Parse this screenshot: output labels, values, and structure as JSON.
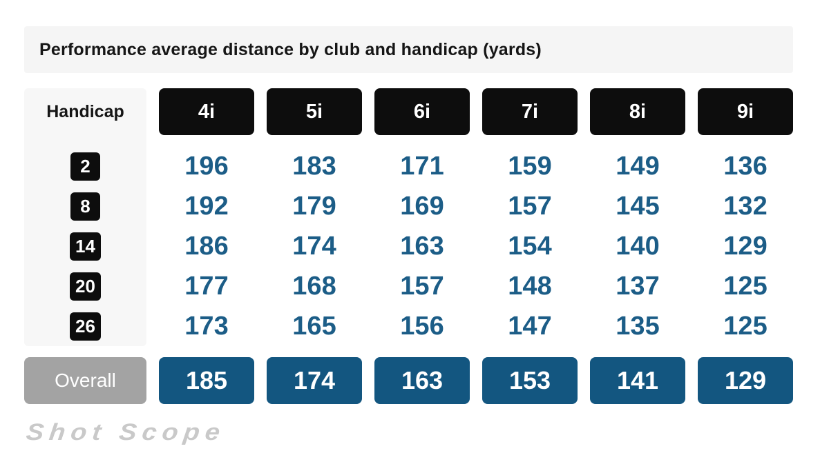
{
  "title": "Performance average distance by club and handicap (yards)",
  "watermark": "Shot Scope",
  "colors": {
    "page_bg": "#ffffff",
    "title_bar_bg": "#f5f5f5",
    "panel_bg": "#f7f7f7",
    "chip_black": "#0d0d0d",
    "value_blue": "#1c5d87",
    "overall_blue_bg": "#135680",
    "overall_gray_bg": "#a3a3a3",
    "watermark_gray": "#c9c9c9"
  },
  "chart_data": {
    "type": "table",
    "title": "Performance average distance by club and handicap (yards)",
    "units": "yards",
    "corner_label": "Handicap",
    "columns": [
      "4i",
      "5i",
      "6i",
      "7i",
      "8i",
      "9i"
    ],
    "row_labels": [
      "2",
      "8",
      "14",
      "20",
      "26"
    ],
    "rows": [
      [
        196,
        183,
        171,
        159,
        149,
        136
      ],
      [
        192,
        179,
        169,
        157,
        145,
        132
      ],
      [
        186,
        174,
        163,
        154,
        140,
        129
      ],
      [
        177,
        168,
        157,
        148,
        137,
        125
      ],
      [
        173,
        165,
        156,
        147,
        135,
        125
      ]
    ],
    "overall_label": "Overall",
    "overall": [
      185,
      174,
      163,
      153,
      141,
      129
    ]
  }
}
